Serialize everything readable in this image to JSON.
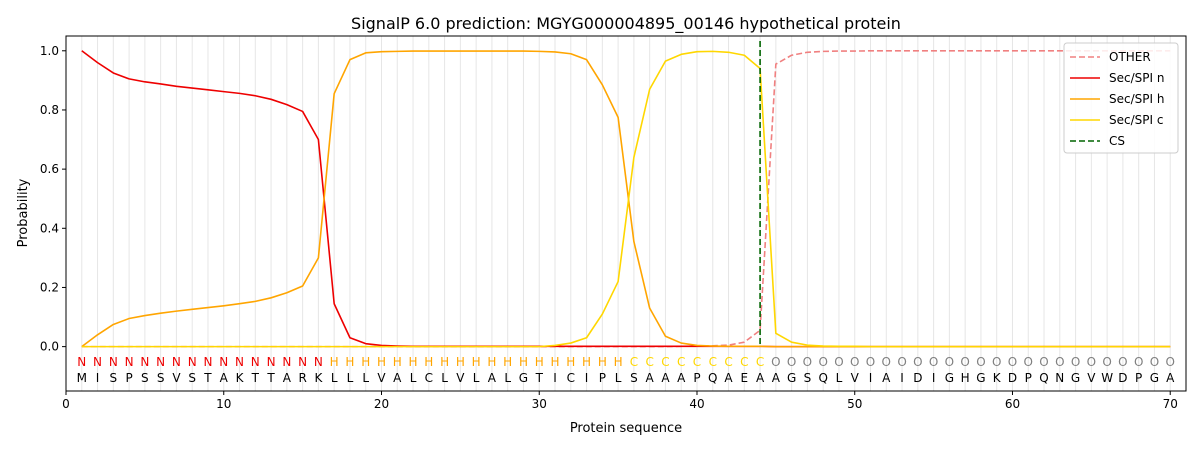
{
  "chart_data": {
    "type": "line",
    "title": "SignalP 6.0 prediction: MGYG000004895_00146 hypothetical protein",
    "xlabel": "Protein sequence",
    "ylabel": "Probability",
    "xlim": [
      0,
      71
    ],
    "ylim": [
      -0.15,
      1.05
    ],
    "x_ticks": [
      0,
      10,
      20,
      30,
      40,
      50,
      60,
      70
    ],
    "y_ticks": [
      0.0,
      0.2,
      0.4,
      0.6,
      0.8,
      1.0
    ],
    "x_tick_labels": [
      "0",
      "10",
      "20",
      "30",
      "40",
      "50",
      "60",
      "70"
    ],
    "y_tick_labels": [
      "0.0",
      "0.2",
      "0.4",
      "0.6",
      "0.8",
      "1.0"
    ],
    "grid": "vertical lines at each residue",
    "legend_position": "top-right",
    "sequence": [
      "M",
      "I",
      "S",
      "P",
      "S",
      "S",
      "V",
      "S",
      "T",
      "A",
      "K",
      "T",
      "T",
      "A",
      "R",
      "K",
      "L",
      "L",
      "L",
      "V",
      "A",
      "L",
      "C",
      "L",
      "V",
      "L",
      "A",
      "L",
      "G",
      "T",
      "I",
      "C",
      "I",
      "P",
      "L",
      "S",
      "A",
      "A",
      "A",
      "P",
      "Q",
      "A",
      "E",
      "A",
      "A",
      "G",
      "S",
      "Q",
      "L",
      "V",
      "I",
      "A",
      "I",
      "D",
      "I",
      "G",
      "H",
      "G",
      "K",
      "D",
      "P",
      "Q",
      "N",
      "G",
      "V",
      "W",
      "D",
      "P",
      "G",
      "A"
    ],
    "region_labels": [
      "N",
      "N",
      "N",
      "N",
      "N",
      "N",
      "N",
      "N",
      "N",
      "N",
      "N",
      "N",
      "N",
      "N",
      "N",
      "N",
      "H",
      "H",
      "H",
      "H",
      "H",
      "H",
      "H",
      "H",
      "H",
      "H",
      "H",
      "H",
      "H",
      "H",
      "H",
      "H",
      "H",
      "H",
      "H",
      "C",
      "C",
      "C",
      "C",
      "C",
      "C",
      "C",
      "C",
      "C",
      "O",
      "O",
      "O",
      "O",
      "O",
      "O",
      "O",
      "O",
      "O",
      "O",
      "O",
      "O",
      "O",
      "O",
      "O",
      "O",
      "O",
      "O",
      "O",
      "O",
      "O",
      "O",
      "O",
      "O",
      "O",
      "O"
    ],
    "region_colors": {
      "N": "#ee0000",
      "H": "#ffa500",
      "C": "#ffd700",
      "O": "#808080"
    },
    "series": [
      {
        "name": "OTHER",
        "color": "#f08080",
        "dash": "dashed",
        "values": [
          0,
          0,
          0,
          0,
          0,
          0,
          0,
          0,
          0,
          0,
          0,
          0,
          0,
          0,
          0,
          0,
          0,
          0,
          0,
          0,
          0,
          0,
          0,
          0,
          0,
          0,
          0,
          0,
          0,
          0,
          0,
          0,
          0,
          0,
          0,
          0,
          0,
          0,
          0.001,
          0.002,
          0.003,
          0.005,
          0.015,
          0.055,
          0.955,
          0.985,
          0.995,
          0.998,
          0.999,
          0.999,
          1,
          1,
          1,
          1,
          1,
          1,
          1,
          1,
          1,
          1,
          1,
          1,
          1,
          1,
          1,
          1,
          1,
          1,
          1,
          1
        ]
      },
      {
        "name": "Sec/SPI n",
        "color": "#ee0000",
        "dash": "solid",
        "values": [
          1.0,
          0.96,
          0.925,
          0.905,
          0.895,
          0.888,
          0.88,
          0.874,
          0.868,
          0.862,
          0.856,
          0.848,
          0.836,
          0.818,
          0.795,
          0.7,
          0.145,
          0.03,
          0.01,
          0.004,
          0.002,
          0.001,
          0.001,
          0.001,
          0.001,
          0.001,
          0.001,
          0.001,
          0.001,
          0.001,
          0.001,
          0.001,
          0.001,
          0.001,
          0.001,
          0.001,
          0.001,
          0.001,
          0.001,
          0.001,
          0.001,
          0.001,
          0.001,
          0.001,
          0,
          0,
          0,
          0,
          0,
          0,
          0,
          0,
          0,
          0,
          0,
          0,
          0,
          0,
          0,
          0,
          0,
          0,
          0,
          0,
          0,
          0,
          0,
          0,
          0,
          0
        ]
      },
      {
        "name": "Sec/SPI h",
        "color": "#ffa500",
        "dash": "solid",
        "values": [
          0.0,
          0.04,
          0.075,
          0.095,
          0.105,
          0.113,
          0.12,
          0.126,
          0.132,
          0.138,
          0.145,
          0.153,
          0.165,
          0.182,
          0.205,
          0.3,
          0.855,
          0.97,
          0.993,
          0.997,
          0.998,
          0.999,
          0.999,
          0.999,
          0.999,
          0.999,
          0.999,
          0.999,
          0.999,
          0.998,
          0.996,
          0.99,
          0.97,
          0.885,
          0.775,
          0.355,
          0.13,
          0.035,
          0.012,
          0.004,
          0.002,
          0.001,
          0.001,
          0.001,
          0,
          0,
          0,
          0,
          0,
          0,
          0,
          0,
          0,
          0,
          0,
          0,
          0,
          0,
          0,
          0,
          0,
          0,
          0,
          0,
          0,
          0,
          0,
          0,
          0,
          0
        ]
      },
      {
        "name": "Sec/SPI c",
        "color": "#ffd700",
        "dash": "solid",
        "values": [
          0,
          0,
          0,
          0,
          0,
          0,
          0,
          0,
          0,
          0,
          0,
          0,
          0,
          0,
          0,
          0,
          0,
          0,
          0,
          0,
          0,
          0,
          0,
          0,
          0,
          0,
          0,
          0,
          0,
          0,
          0.004,
          0.012,
          0.03,
          0.11,
          0.22,
          0.64,
          0.87,
          0.965,
          0.988,
          0.997,
          0.998,
          0.995,
          0.985,
          0.94,
          0.045,
          0.015,
          0.005,
          0.002,
          0.001,
          0.001,
          0,
          0,
          0,
          0,
          0,
          0,
          0,
          0,
          0,
          0,
          0,
          0,
          0,
          0,
          0,
          0,
          0,
          0,
          0,
          0
        ]
      }
    ],
    "cs": {
      "name": "CS",
      "x": 44,
      "color": "#006400",
      "dash": "dashed"
    }
  }
}
